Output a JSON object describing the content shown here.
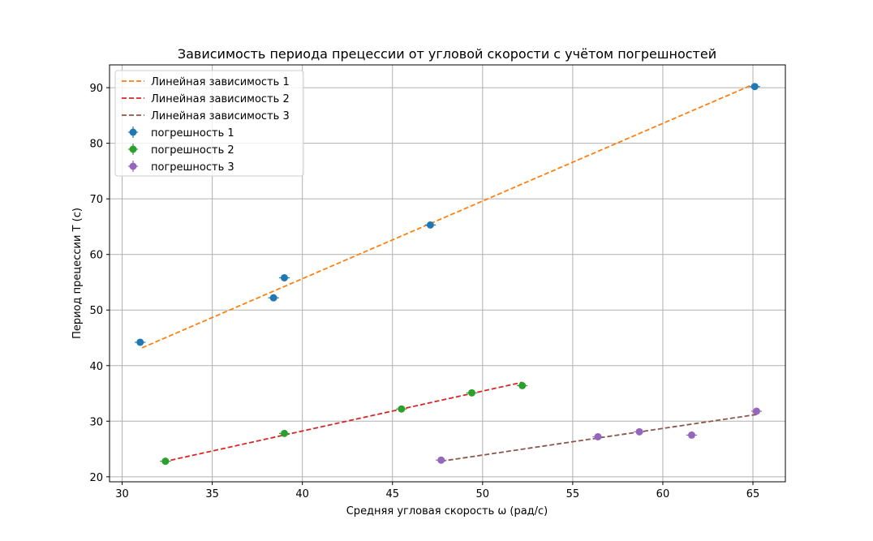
{
  "chart_data": {
    "type": "scatter",
    "title": "Зависимость периода прецессии от угловой скорости с учётом погрешностей",
    "xlabel": "Средняя угловая скорость ω (рад/с)",
    "ylabel": "Период прецессии T (с)",
    "xlim": [
      29.3,
      66.8
    ],
    "ylim": [
      19.1,
      94.1
    ],
    "xticks": [
      30,
      35,
      40,
      45,
      50,
      55,
      60,
      65
    ],
    "yticks": [
      20,
      30,
      40,
      50,
      60,
      70,
      80,
      90
    ],
    "grid": true,
    "legend_position": "top-left",
    "fit_lines": [
      {
        "name": "Линейная зависимость 1",
        "color": "#ff7f0e",
        "x": [
          31.1,
          65.1
        ],
        "y": [
          43.2,
          90.7
        ]
      },
      {
        "name": "Линейная зависимость 2",
        "color": "#d62728",
        "x": [
          32.3,
          52.2
        ],
        "y": [
          22.7,
          37.0
        ]
      },
      {
        "name": "Линейная зависимость 3",
        "color": "#8c564b",
        "x": [
          47.7,
          65.2
        ],
        "y": [
          22.8,
          31.2
        ]
      }
    ],
    "series": [
      {
        "name": "погрешность 1",
        "color": "#1f77b4",
        "x": [
          31.0,
          38.4,
          39.0,
          47.1,
          65.1
        ],
        "y": [
          44.2,
          52.2,
          55.8,
          65.3,
          90.2
        ],
        "xerr": [
          0.3,
          0.3,
          0.3,
          0.3,
          0.3
        ]
      },
      {
        "name": "погрешность 2",
        "color": "#2ca02c",
        "x": [
          32.4,
          39.0,
          45.5,
          49.4,
          52.2
        ],
        "y": [
          22.8,
          27.8,
          32.2,
          35.1,
          36.4
        ],
        "xerr": [
          0.3,
          0.3,
          0.3,
          0.3,
          0.3
        ]
      },
      {
        "name": "погрешность 3",
        "color": "#9467bd",
        "x": [
          47.7,
          56.4,
          58.7,
          61.6,
          65.2
        ],
        "y": [
          23.0,
          27.2,
          28.1,
          27.5,
          31.8
        ],
        "xerr": [
          0.3,
          0.3,
          0.3,
          0.3,
          0.3
        ]
      }
    ]
  }
}
